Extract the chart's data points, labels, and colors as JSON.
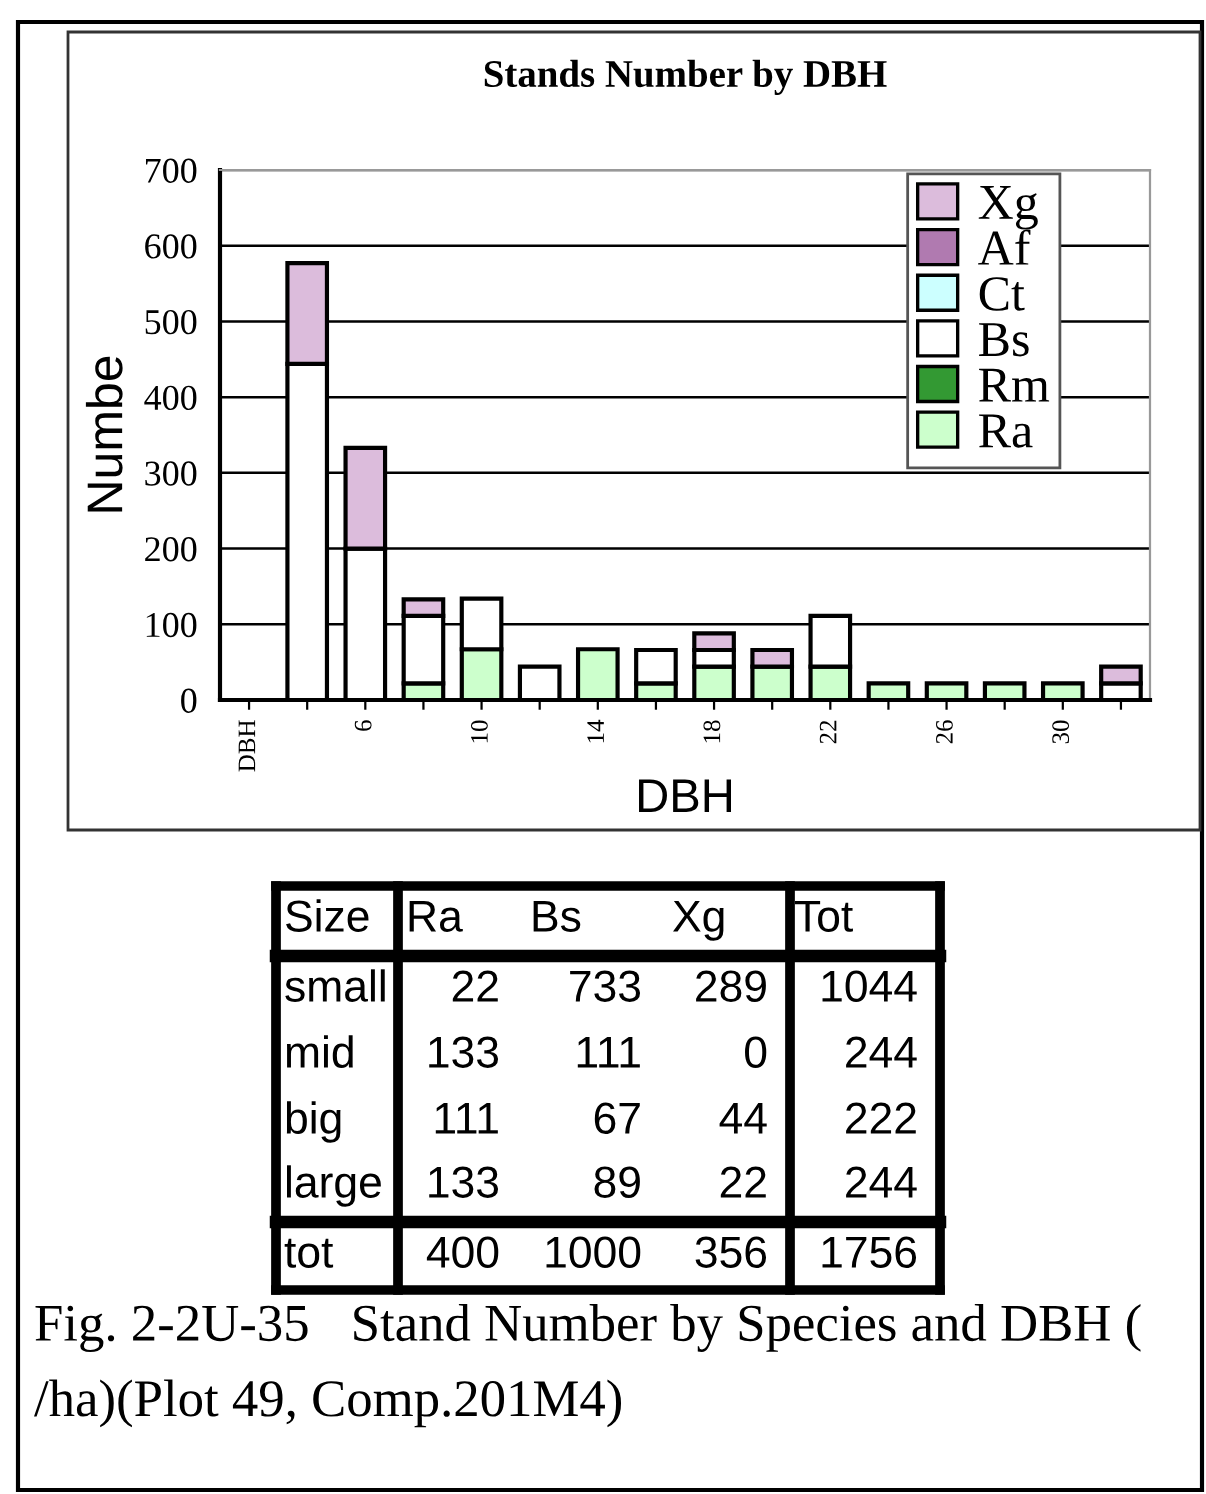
{
  "chart_data": {
    "type": "bar",
    "stacked": true,
    "title": "Stands Number by DBH",
    "xlabel": "DBH",
    "ylabel": "Numbe",
    "categories": [
      "DBH",
      null,
      "6",
      null,
      "10",
      null,
      "14",
      null,
      "18",
      null,
      "22",
      null,
      "26",
      null,
      "30",
      null
    ],
    "series": [
      {
        "name": "Ra",
        "color": "#ccffcc",
        "values": [
          0,
          0,
          0,
          22,
          67,
          0,
          67,
          22,
          44,
          44,
          44,
          22,
          22,
          22,
          22,
          0
        ]
      },
      {
        "name": "Rm",
        "color": "#339933",
        "values": [
          0,
          0,
          0,
          0,
          0,
          0,
          0,
          0,
          0,
          0,
          0,
          0,
          0,
          0,
          0,
          0
        ]
      },
      {
        "name": "Bs",
        "color": "#ffffff",
        "values": [
          0,
          444,
          200,
          89,
          67,
          44,
          0,
          44,
          22,
          0,
          67,
          0,
          0,
          0,
          0,
          22
        ]
      },
      {
        "name": "Ct",
        "color": "#ccffff",
        "values": [
          0,
          0,
          0,
          0,
          0,
          0,
          0,
          0,
          0,
          0,
          0,
          0,
          0,
          0,
          0,
          0
        ]
      },
      {
        "name": "Af",
        "color": "#b07ab0",
        "values": [
          0,
          0,
          0,
          0,
          0,
          0,
          0,
          0,
          0,
          0,
          0,
          0,
          0,
          0,
          0,
          0
        ]
      },
      {
        "name": "Xg",
        "color": "#dcbcdc",
        "values": [
          0,
          133,
          133,
          22,
          0,
          0,
          0,
          0,
          22,
          22,
          0,
          0,
          0,
          0,
          0,
          22
        ]
      }
    ],
    "ylim": [
      0,
      700
    ],
    "yticks": [
      0,
      100,
      200,
      300,
      400,
      500,
      600,
      700
    ],
    "grid": "y",
    "legend": "top right",
    "annotations": [
      "Size",
      "Ra",
      "Bs",
      "Xg",
      "Tot",
      "small",
      "22",
      "733",
      "289",
      "1044",
      "mid",
      "133",
      "111",
      "0",
      "244",
      "big",
      "111",
      "67",
      "44",
      "222",
      "large",
      "133",
      "89",
      "22",
      "244",
      "tot",
      "400",
      "1000",
      "356",
      "1756",
      "Fig. 2-2U-35　Stand Number by Species and DBH ( /ha)(Plot 49, Comp.201M4)"
    ]
  }
}
